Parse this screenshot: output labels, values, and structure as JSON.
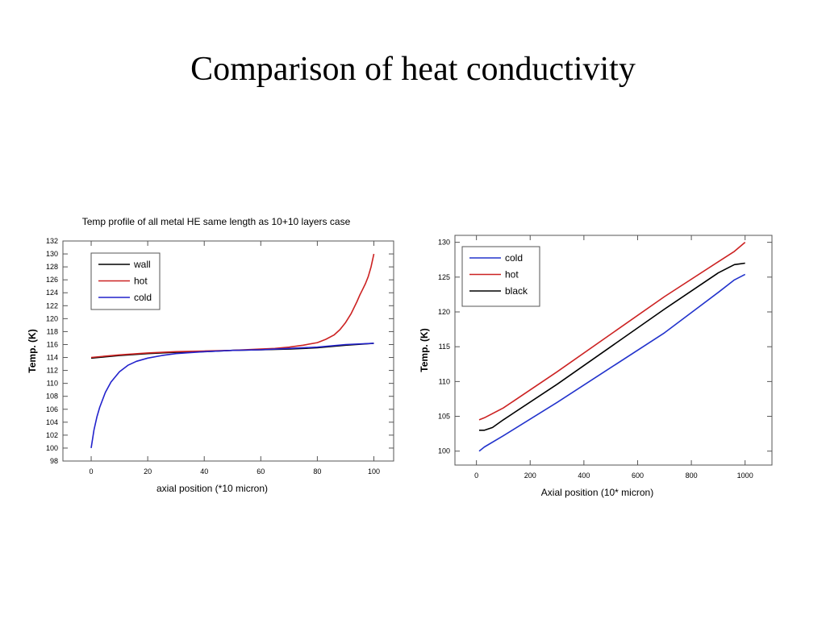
{
  "slide": {
    "title": "Comparison of heat conductivity"
  },
  "chart_data": [
    {
      "type": "line",
      "title": "Temp profile of all metal HE same length as 10+10 layers case",
      "xlabel": "axial position (*10 micron)",
      "ylabel": "Temp. (K)",
      "xlim": [
        -10,
        107
      ],
      "ylim": [
        98,
        132
      ],
      "xticks": [
        0,
        20,
        40,
        60,
        80,
        100
      ],
      "yticks": [
        98,
        100,
        102,
        104,
        106,
        108,
        110,
        112,
        114,
        116,
        118,
        120,
        122,
        124,
        126,
        128,
        130,
        132
      ],
      "grid": false,
      "legend_position": "top-left",
      "series": [
        {
          "name": "wall",
          "color": "#000000",
          "x": [
            0,
            5,
            10,
            20,
            30,
            40,
            50,
            60,
            70,
            80,
            90,
            100
          ],
          "y": [
            113.9,
            114.1,
            114.3,
            114.6,
            114.8,
            114.9,
            115.1,
            115.2,
            115.3,
            115.5,
            115.9,
            116.2
          ]
        },
        {
          "name": "hot",
          "color": "#cc2222",
          "x": [
            0,
            10,
            20,
            30,
            40,
            50,
            60,
            65,
            70,
            75,
            80,
            83,
            86,
            88,
            90,
            92,
            94,
            95,
            96,
            97,
            98,
            99,
            100
          ],
          "y": [
            114.0,
            114.4,
            114.7,
            114.9,
            115.0,
            115.1,
            115.3,
            115.4,
            115.6,
            115.9,
            116.3,
            116.8,
            117.5,
            118.3,
            119.4,
            120.8,
            122.6,
            123.6,
            124.5,
            125.4,
            126.5,
            128.0,
            130.0
          ]
        },
        {
          "name": "cold",
          "color": "#2222cc",
          "x": [
            0,
            1,
            2,
            3,
            5,
            7,
            10,
            13,
            16,
            20,
            25,
            30,
            40,
            50,
            60,
            70,
            80,
            90,
            100
          ],
          "y": [
            100.0,
            102.8,
            104.8,
            106.3,
            108.6,
            110.2,
            111.8,
            112.8,
            113.4,
            113.9,
            114.3,
            114.6,
            114.9,
            115.1,
            115.2,
            115.4,
            115.6,
            116.0,
            116.2
          ]
        }
      ]
    },
    {
      "type": "line",
      "title": "",
      "xlabel": "Axial position (10* micron)",
      "ylabel": "Temp. (K)",
      "xlim": [
        -80,
        1100
      ],
      "ylim": [
        98,
        131
      ],
      "xticks": [
        0,
        200,
        400,
        600,
        800,
        1000
      ],
      "yticks": [
        100,
        105,
        110,
        115,
        120,
        125,
        130
      ],
      "grid": false,
      "legend_position": "top-left",
      "series": [
        {
          "name": "cold",
          "color": "#2233cc",
          "x": [
            10,
            30,
            100,
            300,
            500,
            700,
            900,
            960,
            1000
          ],
          "y": [
            100.0,
            100.6,
            102.2,
            107.0,
            112.0,
            117.0,
            122.8,
            124.6,
            125.4
          ]
        },
        {
          "name": "hot",
          "color": "#cc2222",
          "x": [
            10,
            30,
            100,
            300,
            500,
            700,
            900,
            960,
            1000
          ],
          "y": [
            104.5,
            104.8,
            106.2,
            111.4,
            116.8,
            122.2,
            127.2,
            128.7,
            130.0
          ]
        },
        {
          "name": "black",
          "color": "#000000",
          "x": [
            10,
            30,
            60,
            100,
            300,
            500,
            700,
            900,
            960,
            980,
            1000
          ],
          "y": [
            103.0,
            103.0,
            103.4,
            104.5,
            109.6,
            115.0,
            120.4,
            125.6,
            126.8,
            126.9,
            127.0
          ]
        }
      ]
    }
  ]
}
